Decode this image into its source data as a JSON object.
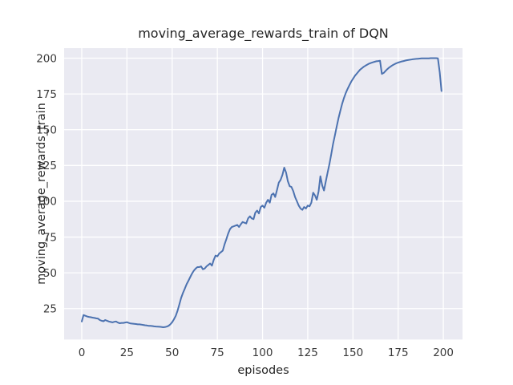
{
  "chart_data": {
    "type": "line",
    "title": "moving_average_rewards_train of DQN",
    "xlabel": "episodes",
    "ylabel": "moving_average_rewards_train",
    "xticks": [
      0,
      25,
      50,
      75,
      100,
      125,
      150,
      175,
      200
    ],
    "yticks": [
      25,
      50,
      75,
      100,
      125,
      150,
      175,
      200
    ],
    "xlim": [
      -9.75,
      210.6
    ],
    "ylim": [
      3.4,
      207.0
    ],
    "grid": true,
    "legend": false,
    "style": "seaborn-darkgrid",
    "colors": {
      "line": "#4C72B0",
      "axes_background": "#EAEAF2",
      "gridline": "#FFFFFF",
      "figure_background": "#FFFFFF",
      "text": "#262626"
    },
    "series": [
      {
        "name": "moving_average_rewards_train",
        "x_start": 0,
        "x_step": 1,
        "values": [
          16,
          20.5,
          20,
          19.5,
          19.2,
          19,
          18.7,
          18.5,
          18.2,
          18,
          17,
          16.5,
          16.2,
          17,
          16.5,
          16,
          15.7,
          15.4,
          15.8,
          16,
          15.2,
          14.8,
          15,
          15,
          15.3,
          15.5,
          15,
          14.6,
          14.5,
          14.4,
          14.2,
          14,
          14,
          13.8,
          13.6,
          13.4,
          13.2,
          13,
          13,
          12.8,
          12.6,
          12.5,
          12.4,
          12.3,
          12.2,
          12,
          12.1,
          12.4,
          13,
          14,
          15.5,
          17.5,
          20,
          23.5,
          28,
          32.5,
          36,
          39,
          42,
          44.5,
          47,
          49.5,
          51.5,
          53,
          54,
          54,
          54.5,
          52.5,
          53,
          54.5,
          55.5,
          56.5,
          55,
          59,
          62,
          61.5,
          63.5,
          64.5,
          65.5,
          70,
          73.5,
          77.5,
          80.5,
          82,
          82.5,
          83,
          83.5,
          82,
          84,
          85.5,
          85,
          84.5,
          88,
          89.5,
          88,
          87.5,
          92,
          93.5,
          91.5,
          96,
          97,
          95.5,
          99,
          101,
          99,
          104.5,
          105.5,
          103,
          108,
          113,
          115,
          118.5,
          123.5,
          120,
          114,
          110.5,
          110,
          107,
          103,
          100,
          97,
          95,
          94,
          96,
          95,
          97,
          96.5,
          99,
          106,
          104,
          101,
          107,
          117.5,
          111,
          107.5,
          114,
          120,
          126,
          133,
          140,
          146,
          152,
          158,
          163,
          168,
          172,
          175.5,
          178.5,
          181,
          183.5,
          185.5,
          187.5,
          189,
          190.5,
          192,
          193,
          194,
          194.8,
          195.5,
          196.2,
          196.7,
          197.1,
          197.5,
          197.8,
          198,
          198.2,
          189,
          189.7,
          191,
          192.3,
          193.4,
          194.3,
          195.1,
          195.8,
          196.4,
          196.9,
          197.3,
          197.7,
          198,
          198.3,
          198.6,
          198.8,
          199,
          199.2,
          199.4,
          199.5,
          199.6,
          199.7,
          199.8,
          199.8,
          199.9,
          199.9,
          199.9,
          200,
          200,
          200,
          200,
          199.8,
          190,
          177
        ]
      }
    ]
  }
}
